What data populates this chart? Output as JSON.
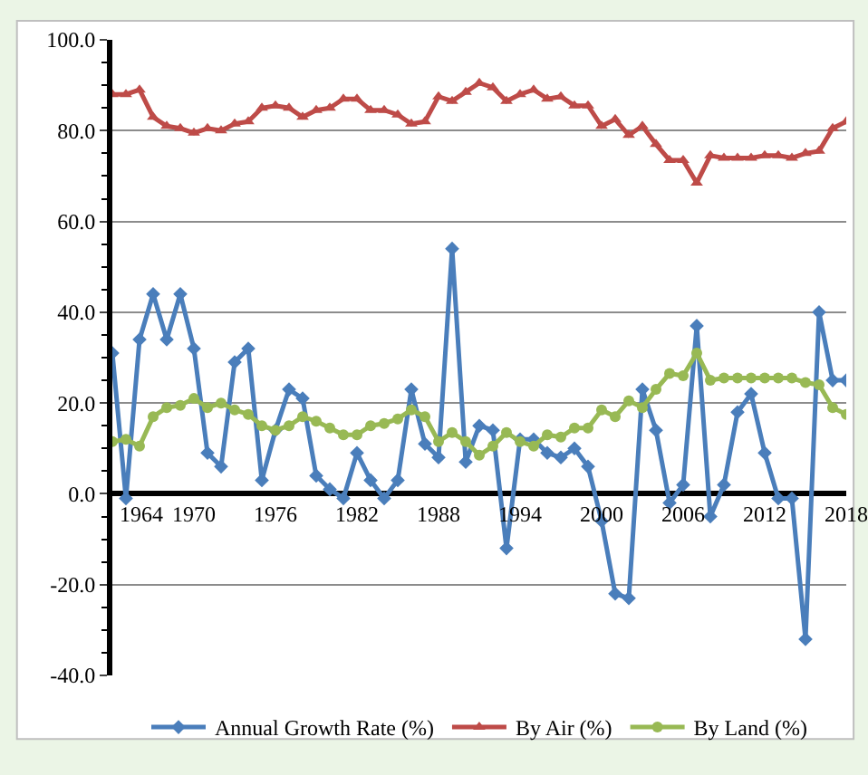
{
  "chart_data": {
    "type": "line",
    "x": [
      1964,
      1965,
      1966,
      1967,
      1968,
      1969,
      1970,
      1971,
      1972,
      1973,
      1974,
      1975,
      1976,
      1977,
      1978,
      1979,
      1980,
      1981,
      1982,
      1983,
      1984,
      1985,
      1986,
      1987,
      1988,
      1989,
      1990,
      1991,
      1992,
      1993,
      1994,
      1995,
      1996,
      1997,
      1998,
      1999,
      2000,
      2001,
      2002,
      2003,
      2004,
      2005,
      2006,
      2007,
      2008,
      2009,
      2010,
      2011,
      2012,
      2013,
      2014,
      2015,
      2016,
      2017,
      2018
    ],
    "series": [
      {
        "name": "Annual Growth Rate (%)",
        "color": "#4a7ebb",
        "marker": "diamond",
        "values": [
          31,
          -1,
          34,
          44,
          34,
          44,
          32,
          9,
          6,
          29,
          32,
          3,
          14,
          23,
          21,
          4,
          1,
          -1,
          9,
          3,
          -1,
          3,
          23,
          11,
          8,
          54,
          7,
          15,
          14,
          -12,
          12,
          12,
          9,
          8,
          10,
          6,
          -6,
          -22,
          -23,
          23,
          14,
          -2,
          2,
          37,
          -5,
          2,
          18,
          22,
          9,
          -1,
          -1,
          -32,
          40,
          25,
          25
        ]
      },
      {
        "name": "By Air (%)",
        "color": "#be4b48",
        "marker": "triangle",
        "values": [
          88,
          88,
          89,
          83,
          81,
          80.5,
          79.5,
          80.5,
          80,
          81.5,
          82,
          85,
          85.5,
          85,
          83,
          84.5,
          85,
          87,
          87,
          84.5,
          84.5,
          83.5,
          81.5,
          82,
          87.5,
          86.5,
          88.5,
          90.5,
          89.5,
          86.5,
          88,
          89,
          87,
          87.5,
          85.5,
          85.5,
          81,
          82.5,
          79,
          81,
          77,
          73.5,
          73.5,
          68.5,
          74.5,
          74,
          74,
          74,
          74.5,
          74.5,
          74,
          75,
          75.5,
          80.5,
          82
        ]
      },
      {
        "name": "By Land (%)",
        "color": "#98b954",
        "marker": "circle",
        "values": [
          11.5,
          12,
          10.5,
          17,
          19,
          19.5,
          21,
          19,
          20,
          18.5,
          17.5,
          15,
          14,
          15,
          17,
          16,
          14.5,
          13,
          13,
          15,
          15.5,
          16.5,
          18.5,
          17,
          11.5,
          13.5,
          11.5,
          8.5,
          10.5,
          13.5,
          11.5,
          10.5,
          13,
          12.5,
          14.5,
          14.5,
          18.5,
          17,
          20.5,
          19,
          23,
          26.5,
          26,
          31,
          25,
          25.5,
          25.5,
          25.5,
          25.5,
          25.5,
          25.5,
          24.5,
          24,
          19,
          17.5
        ]
      }
    ],
    "xlim": [
      1964,
      2018
    ],
    "xticks": [
      1964,
      1970,
      1976,
      1982,
      1988,
      1994,
      2000,
      2006,
      2012,
      2018
    ],
    "ylim": [
      -40,
      100
    ],
    "yticks": [
      {
        "value": -40,
        "label": "-40.0"
      },
      {
        "value": -20,
        "label": "-20.0"
      },
      {
        "value": 0,
        "label": "0.0"
      },
      {
        "value": 20,
        "label": "20.0"
      },
      {
        "value": 40,
        "label": "40.0"
      },
      {
        "value": 60,
        "label": "60.0"
      },
      {
        "value": 80,
        "label": "80.0"
      },
      {
        "value": 100,
        "label": "100.0"
      }
    ],
    "grid": "y",
    "legend": "bottom",
    "line_style": "solid"
  }
}
